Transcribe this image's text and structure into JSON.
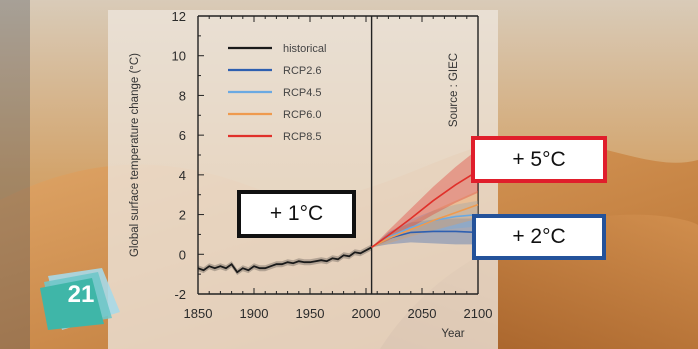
{
  "slide": {
    "page_number": "21",
    "callouts": {
      "current": "+ 1°C",
      "high": "+ 5°C",
      "low": "+ 2°C"
    },
    "colors": {
      "callout_current_border": "#111111",
      "callout_high_border": "#e01e2b",
      "callout_low_border": "#24529a",
      "badge": "#3fb6a8"
    }
  },
  "chart_data": {
    "type": "line",
    "ylabel": "Global surface temperature change (°C)",
    "xlabel": "Year",
    "source": "Source : GIEC",
    "xlim": [
      1850,
      2100
    ],
    "ylim": [
      -2,
      12
    ],
    "x_ticks": [
      1850,
      1900,
      1950,
      2000,
      2050,
      2100
    ],
    "y_ticks": [
      -2,
      0,
      2,
      4,
      6,
      8,
      10,
      12
    ],
    "vertical_line_x": 2005,
    "legend_position": "top-left",
    "series": [
      {
        "name": "historical",
        "color": "#1a1a1a",
        "x": [
          1850,
          1855,
          1860,
          1865,
          1870,
          1875,
          1880,
          1885,
          1890,
          1895,
          1900,
          1905,
          1910,
          1915,
          1920,
          1925,
          1930,
          1935,
          1940,
          1945,
          1950,
          1955,
          1960,
          1965,
          1970,
          1975,
          1980,
          1985,
          1990,
          1995,
          2000,
          2005
        ],
        "values": [
          -0.7,
          -0.8,
          -0.6,
          -0.7,
          -0.6,
          -0.7,
          -0.5,
          -0.9,
          -0.7,
          -0.8,
          -0.6,
          -0.7,
          -0.7,
          -0.6,
          -0.5,
          -0.5,
          -0.4,
          -0.45,
          -0.35,
          -0.4,
          -0.4,
          -0.35,
          -0.3,
          -0.35,
          -0.2,
          -0.25,
          -0.05,
          -0.1,
          0.1,
          0.05,
          0.2,
          0.35
        ],
        "band": 0.15
      },
      {
        "name": "RCP2.6",
        "color": "#2e5fb0",
        "x": [
          2005,
          2020,
          2040,
          2060,
          2080,
          2100
        ],
        "values": [
          0.35,
          0.8,
          1.1,
          1.15,
          1.15,
          1.1
        ],
        "lower": [
          0.35,
          0.5,
          0.6,
          0.55,
          0.5,
          0.5
        ],
        "upper": [
          0.35,
          1.1,
          1.6,
          1.75,
          1.8,
          1.8
        ]
      },
      {
        "name": "RCP4.5",
        "color": "#6aa9e2",
        "x": [
          2005,
          2020,
          2040,
          2060,
          2080,
          2100
        ],
        "values": [
          0.35,
          0.85,
          1.35,
          1.7,
          1.9,
          2.0
        ],
        "lower": [
          0.35,
          0.6,
          0.95,
          1.15,
          1.3,
          1.4
        ],
        "upper": [
          0.35,
          1.1,
          1.75,
          2.2,
          2.5,
          2.7
        ]
      },
      {
        "name": "RCP6.0",
        "color": "#ef9a4e",
        "x": [
          2005,
          2020,
          2040,
          2060,
          2080,
          2100
        ],
        "values": [
          0.35,
          0.8,
          1.25,
          1.7,
          2.1,
          2.5
        ],
        "lower": [
          0.35,
          0.55,
          0.9,
          1.2,
          1.5,
          1.8
        ],
        "upper": [
          0.35,
          1.05,
          1.6,
          2.2,
          2.7,
          3.2
        ]
      },
      {
        "name": "RCP8.5",
        "color": "#e0302a",
        "x": [
          2005,
          2020,
          2040,
          2060,
          2080,
          2100
        ],
        "values": [
          0.35,
          0.95,
          1.8,
          2.7,
          3.5,
          4.2
        ],
        "lower": [
          0.35,
          0.7,
          1.35,
          2.0,
          2.6,
          3.1
        ],
        "upper": [
          0.35,
          1.2,
          2.3,
          3.4,
          4.4,
          5.3
        ]
      }
    ]
  }
}
